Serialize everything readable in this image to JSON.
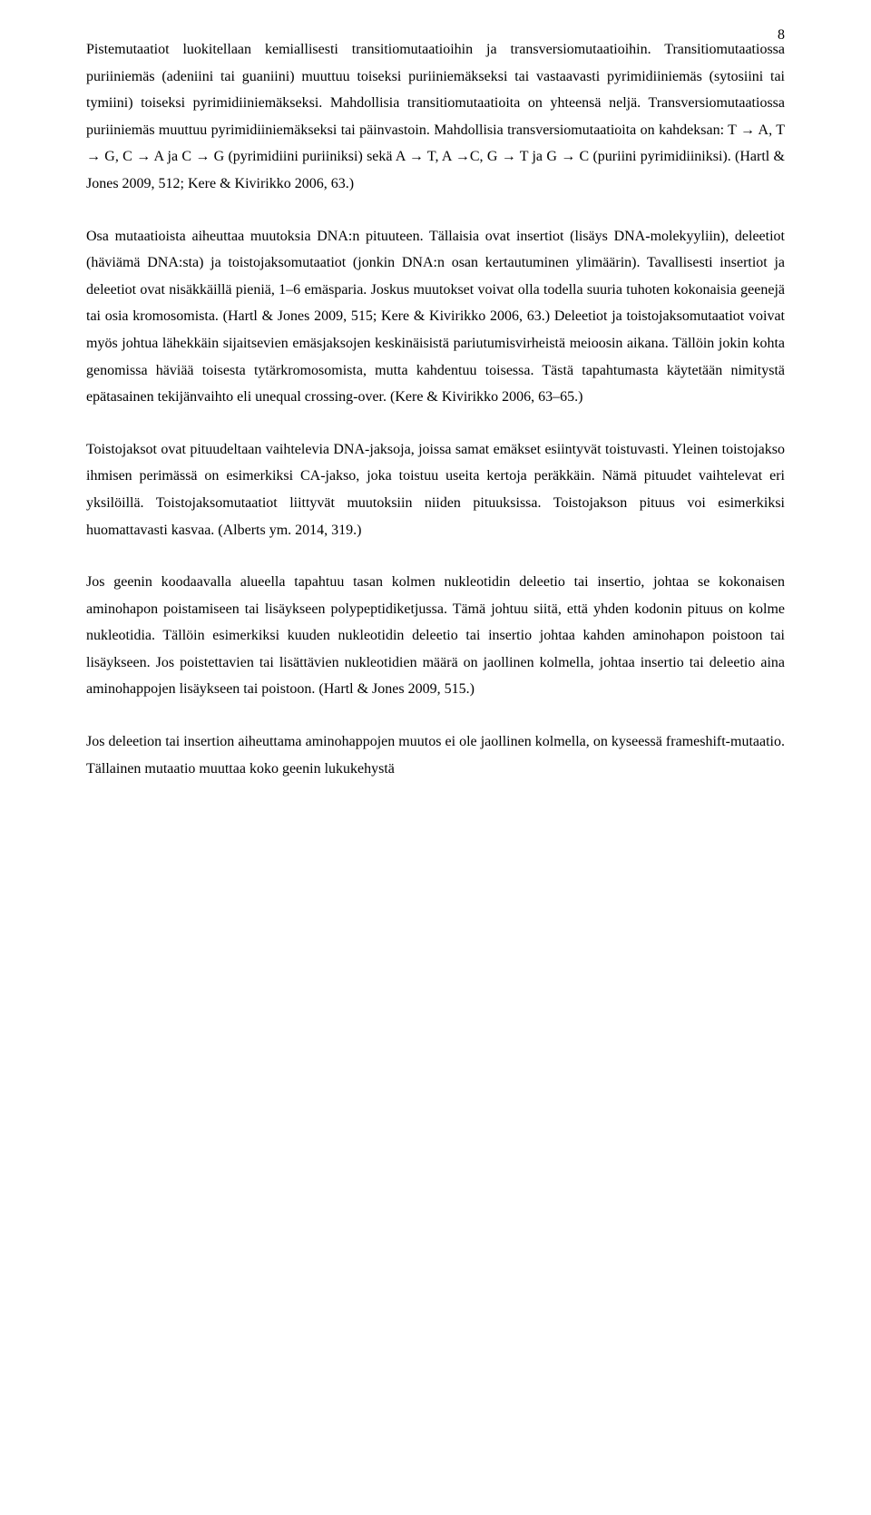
{
  "pageNumber": "8",
  "paragraphs": [
    "Pistemutaatiot luokitellaan kemiallisesti transitiomutaatioihin ja transversiomutaatioihin. Transitiomutaatiossa puriiniemäs (adeniini tai guaniini) muuttuu toiseksi puriiniemäkseksi tai vastaavasti pyrimidiiniemäs (sytosiini tai tymiini) toiseksi pyrimidiiniemäkseksi. Mahdollisia transitiomutaatioita on yhteensä neljä. Transversiomutaatiossa puriiniemäs muuttuu pyrimidiiniemäkseksi tai päinvastoin. Mahdollisia transversiomutaatioita on kahdeksan: T → A, T → G, C → A ja C → G (pyrimidiini puriiniksi) sekä A → T, A →C, G → T ja G → C (puriini pyrimidiiniksi). (Hartl & Jones 2009, 512; Kere & Kivirikko 2006, 63.)",
    "Osa mutaatioista aiheuttaa muutoksia DNA:n pituuteen. Tällaisia ovat insertiot (lisäys DNA-molekyyliin), deleetiot (häviämä DNA:sta) ja toistojaksomutaatiot (jonkin DNA:n osan kertautuminen ylimäärin). Tavallisesti insertiot ja deleetiot ovat nisäkkäillä pieniä, 1–6 emäsparia. Joskus muutokset voivat olla todella suuria tuhoten kokonaisia geenejä tai osia kromosomista. (Hartl & Jones 2009, 515; Kere & Kivirikko 2006, 63.) Deleetiot ja toistojaksomutaatiot voivat myös johtua lähekkäin sijaitsevien emäsjaksojen keskinäisistä pariutumisvirheistä meioosin aikana. Tällöin jokin kohta genomissa häviää toisesta tytärkromosomista, mutta kahdentuu toisessa. Tästä tapahtumasta käytetään nimitystä epätasainen tekijänvaihto eli unequal crossing-over. (Kere & Kivirikko 2006, 63–65.)",
    "Toistojaksot ovat pituudeltaan vaihtelevia DNA-jaksoja, joissa samat emäkset esiintyvät toistuvasti. Yleinen toistojakso ihmisen perimässä on esimerkiksi CA-jakso, joka toistuu useita kertoja peräkkäin. Nämä pituudet vaihtelevat eri yksilöillä. Toistojaksomutaatiot liittyvät muutoksiin niiden pituuksissa. Toistojakson pituus voi esimerkiksi huomattavasti kasvaa. (Alberts ym. 2014, 319.)",
    "Jos geenin koodaavalla alueella tapahtuu tasan kolmen nukleotidin deleetio tai insertio, johtaa se kokonaisen aminohapon poistamiseen tai lisäykseen polypeptidiketjussa. Tämä johtuu siitä, että yhden kodonin pituus on kolme nukleotidia. Tällöin esimerkiksi kuuden nukleotidin deleetio tai insertio johtaa kahden aminohapon poistoon tai lisäykseen. Jos poistettavien tai lisättävien nukleotidien määrä on jaollinen kolmella, johtaa insertio tai deleetio aina aminohappojen lisäykseen tai poistoon. (Hartl & Jones 2009, 515.)",
    "Jos deleetion tai insertion aiheuttama aminohappojen muutos ei ole jaollinen kolmella, on kyseessä frameshift-mutaatio. Tällainen mutaatio muuttaa koko geenin lukukehystä"
  ]
}
